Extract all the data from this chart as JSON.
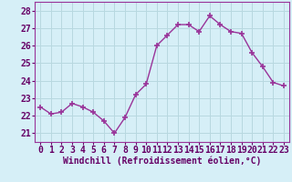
{
  "x": [
    0,
    1,
    2,
    3,
    4,
    5,
    6,
    7,
    8,
    9,
    10,
    11,
    12,
    13,
    14,
    15,
    16,
    17,
    18,
    19,
    20,
    21,
    22,
    23
  ],
  "y": [
    22.5,
    22.1,
    22.2,
    22.7,
    22.5,
    22.2,
    21.7,
    21.0,
    21.9,
    23.2,
    23.8,
    26.0,
    26.6,
    27.2,
    27.2,
    26.8,
    27.7,
    27.2,
    26.8,
    26.7,
    25.6,
    24.8,
    23.9,
    23.7
  ],
  "line_color": "#993399",
  "marker": "+",
  "marker_size": 4,
  "linewidth": 1.0,
  "xlabel": "Windchill (Refroidissement éolien,°C)",
  "xlabel_fontsize": 7,
  "ylabel_ticks": [
    21,
    22,
    23,
    24,
    25,
    26,
    27,
    28
  ],
  "xticks": [
    0,
    1,
    2,
    3,
    4,
    5,
    6,
    7,
    8,
    9,
    10,
    11,
    12,
    13,
    14,
    15,
    16,
    17,
    18,
    19,
    20,
    21,
    22,
    23
  ],
  "xlim": [
    -0.5,
    23.5
  ],
  "ylim": [
    20.5,
    28.5
  ],
  "bg_color": "#d6eff7",
  "grid_color": "#b8d8e0",
  "tick_fontsize": 7
}
